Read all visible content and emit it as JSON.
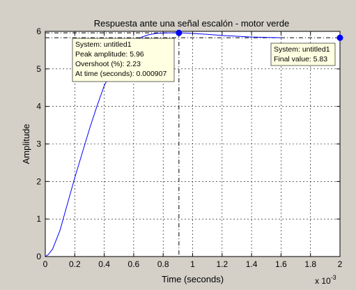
{
  "chart_data": {
    "type": "line",
    "title": "Respuesta ante una señal escalón - motor verde",
    "xlabel": "Time (seconds)",
    "ylabel": "Amplitude",
    "x_exponent_label": "x 10",
    "x_exponent": "-3",
    "xlim": [
      0,
      0.002
    ],
    "ylim": [
      0,
      6
    ],
    "xticks": [
      0,
      0.0002,
      0.0004,
      0.0006,
      0.0008,
      0.001,
      0.0012,
      0.0014,
      0.0016,
      0.0018,
      0.002
    ],
    "xtick_labels": [
      "0",
      "0.2",
      "0.4",
      "0.6",
      "0.8",
      "1",
      "1.2",
      "1.4",
      "1.6",
      "1.8",
      "2"
    ],
    "yticks": [
      0,
      1,
      2,
      3,
      4,
      5,
      6
    ],
    "ytick_labels": [
      "0",
      "1",
      "2",
      "3",
      "4",
      "5",
      "6"
    ],
    "grid": true,
    "series": [
      {
        "color": "#0000ff",
        "x": [
          0,
          2e-05,
          5e-05,
          0.0001,
          0.00015,
          0.0002,
          0.00025,
          0.0003,
          0.00035,
          0.0004,
          0.00045,
          0.0005,
          0.00055,
          0.0006,
          0.00065,
          0.0007,
          0.00075,
          0.0008,
          0.00085,
          0.000907,
          0.00095,
          0.001,
          0.0011,
          0.0012,
          0.0013,
          0.0014,
          0.0015,
          0.0016
        ],
        "y": [
          0,
          0.05,
          0.2,
          0.7,
          1.4,
          2.1,
          2.75,
          3.4,
          4.0,
          4.55,
          4.95,
          5.3,
          5.55,
          5.72,
          5.84,
          5.91,
          5.945,
          5.955,
          5.96,
          5.96,
          5.955,
          5.945,
          5.92,
          5.89,
          5.87,
          5.85,
          5.84,
          5.83
        ]
      }
    ],
    "reference_line_y": 5.83,
    "reference_color": "#000000",
    "datatips": [
      {
        "x": 0.000907,
        "y": 5.96,
        "lines": [
          "System: untitled1",
          "Peak amplitude: 5.96",
          "Overshoot (%): 2.23",
          "At time (seconds): 0.000907"
        ]
      },
      {
        "x": 0.002,
        "y": 5.83,
        "lines": [
          "System: untitled1",
          "Final value: 5.83"
        ]
      }
    ],
    "colors": {
      "figure_bg": "#d4d0c8",
      "axes_bg": "#ffffff",
      "datatip_bg": "#ffffe1",
      "marker": "#0000ff"
    }
  }
}
